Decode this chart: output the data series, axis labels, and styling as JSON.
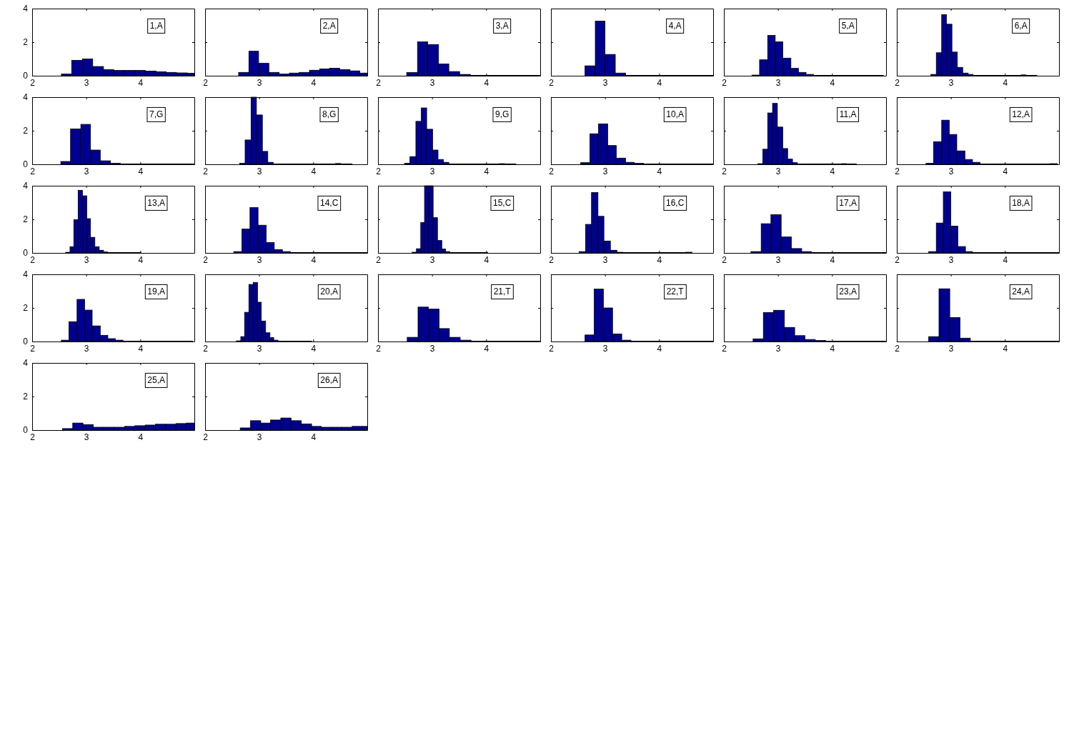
{
  "chart_data": [
    {
      "type": "histogram",
      "bins": [
        2.54,
        2.73,
        2.93,
        3.12,
        3.32,
        3.51,
        3.7,
        3.9,
        4.09,
        4.29,
        4.48,
        4.67,
        4.87,
        5.0
      ],
      "values": [
        0.1,
        0.92,
        1.0,
        0.55,
        0.37,
        0.32,
        0.32,
        0.32,
        0.28,
        0.24,
        0.2,
        0.17,
        0.15
      ],
      "color": "#00008f",
      "xlim": [
        2,
        5
      ],
      "ylim": [
        0,
        4
      ],
      "xticks": [
        2,
        3,
        4
      ],
      "yticks": [
        0,
        2,
        4
      ],
      "annotations": [
        "1,A"
      ]
    },
    {
      "type": "histogram",
      "bins": [
        2.62,
        2.81,
        2.99,
        3.18,
        3.37,
        3.56,
        3.74,
        3.93,
        4.12,
        4.3,
        4.49,
        4.68,
        4.86,
        5.0
      ],
      "values": [
        0.2,
        1.46,
        0.74,
        0.2,
        0.1,
        0.16,
        0.2,
        0.33,
        0.41,
        0.45,
        0.37,
        0.29,
        0.16
      ],
      "color": "#00008f",
      "xlim": [
        2,
        5
      ],
      "ylim": [
        0,
        4
      ],
      "xticks": [
        2,
        3,
        4
      ],
      "yticks": [
        0,
        2,
        4
      ],
      "annotations": [
        "2,A"
      ],
      "tick_labels": "x"
    },
    {
      "type": "histogram",
      "bins": [
        2.53,
        2.73,
        2.92,
        3.12,
        3.31,
        3.51,
        3.71,
        3.9,
        4.1,
        4.29,
        4.49,
        4.69,
        4.88,
        5.0
      ],
      "values": [
        0.19,
        2.02,
        1.86,
        0.7,
        0.25,
        0.08,
        0.02,
        0.02,
        0.02,
        0.02,
        0.02,
        0.02,
        0.02
      ],
      "color": "#00008f",
      "xlim": [
        2,
        5
      ],
      "ylim": [
        0,
        4
      ],
      "xticks": [
        2,
        3,
        4
      ],
      "yticks": [
        0,
        2,
        4
      ],
      "annotations": [
        "3,A"
      ],
      "tick_labels": "x"
    },
    {
      "type": "histogram",
      "bins": [
        2.63,
        2.82,
        3.0,
        3.19,
        3.38,
        3.57,
        3.75,
        3.94,
        4.13,
        4.31,
        4.5,
        4.69,
        4.87,
        5.0
      ],
      "values": [
        0.59,
        3.25,
        1.27,
        0.16,
        0.02,
        0.02,
        0.02,
        0.02,
        0.02,
        0.02,
        0.02,
        0.02,
        0.02
      ],
      "color": "#00008f",
      "xlim": [
        2,
        5
      ],
      "ylim": [
        0,
        4
      ],
      "xticks": [
        2,
        3,
        4
      ],
      "yticks": [
        0,
        2,
        4
      ],
      "annotations": [
        "4,A"
      ],
      "tick_labels": "x"
    },
    {
      "type": "histogram",
      "bins": [
        2.52,
        2.66,
        2.81,
        2.95,
        3.09,
        3.24,
        3.38,
        3.52,
        3.66,
        3.81,
        3.95,
        4.09,
        4.24,
        4.38,
        4.52,
        4.67,
        4.81,
        4.95
      ],
      "values": [
        0.04,
        0.95,
        2.4,
        2.02,
        1.05,
        0.44,
        0.2,
        0.08,
        0.02,
        0.02,
        0.02,
        0.02,
        0.02,
        0.02,
        0.02,
        0.02,
        0.02
      ],
      "color": "#00008f",
      "xlim": [
        2,
        5
      ],
      "ylim": [
        0,
        4
      ],
      "xticks": [
        2,
        3,
        4
      ],
      "yticks": [
        0,
        2,
        4
      ],
      "annotations": [
        "5,A"
      ],
      "tick_labels": "x"
    },
    {
      "type": "histogram",
      "bins": [
        2.63,
        2.73,
        2.83,
        2.92,
        3.02,
        3.12,
        3.22,
        3.32,
        3.41,
        3.51,
        3.61,
        3.71,
        3.81,
        3.9,
        4.0,
        4.1,
        4.2,
        4.3,
        4.39,
        4.49,
        4.59
      ],
      "values": [
        0.08,
        1.37,
        3.64,
        3.07,
        1.41,
        0.5,
        0.16,
        0.08,
        0.02,
        0.02,
        0.02,
        0.02,
        0.02,
        0.02,
        0.02,
        0.02,
        0.02,
        0.05,
        0.02,
        0.02
      ],
      "color": "#00008f",
      "xlim": [
        2,
        5
      ],
      "ylim": [
        0,
        4
      ],
      "xticks": [
        2,
        3,
        4
      ],
      "yticks": [
        0,
        2,
        4
      ],
      "annotations": [
        "6,A"
      ],
      "tick_labels": "x"
    },
    {
      "type": "histogram",
      "bins": [
        2.53,
        2.71,
        2.9,
        3.08,
        3.26,
        3.45,
        3.63,
        3.81,
        4.0,
        4.18,
        4.36,
        4.54,
        4.73,
        4.91,
        5.0
      ],
      "values": [
        0.17,
        2.11,
        2.38,
        0.85,
        0.21,
        0.06,
        0.02,
        0.02,
        0.02,
        0.02,
        0.02,
        0.02,
        0.02,
        0.02
      ],
      "color": "#00008f",
      "xlim": [
        2,
        5
      ],
      "ylim": [
        0,
        4
      ],
      "xticks": [
        2,
        3,
        4
      ],
      "yticks": [
        0,
        2,
        4
      ],
      "annotations": [
        "7,G"
      ]
    },
    {
      "type": "histogram",
      "bins": [
        2.64,
        2.74,
        2.85,
        2.95,
        3.06,
        3.16,
        3.26,
        3.37,
        3.47,
        3.58,
        3.68,
        3.78,
        3.89,
        3.99,
        4.1,
        4.2,
        4.3,
        4.41,
        4.51,
        4.62,
        4.72
      ],
      "values": [
        0.06,
        1.45,
        4,
        2.94,
        0.77,
        0.12,
        0.02,
        0.02,
        0.02,
        0.02,
        0.02,
        0.02,
        0.02,
        0.02,
        0.02,
        0.02,
        0.02,
        0.05,
        0.02,
        0.02
      ],
      "color": "#00008f",
      "xlim": [
        2,
        5
      ],
      "ylim": [
        0,
        4
      ],
      "xticks": [
        2,
        3,
        4
      ],
      "yticks": [
        0,
        2,
        4
      ],
      "annotations": [
        "8,G"
      ],
      "tick_labels": "x"
    },
    {
      "type": "histogram",
      "bins": [
        2.49,
        2.59,
        2.7,
        2.8,
        2.9,
        3.01,
        3.11,
        3.21,
        3.31,
        3.42,
        3.52,
        3.62,
        3.73,
        3.83,
        3.93,
        4.04,
        4.14,
        4.24,
        4.34,
        4.45,
        4.55
      ],
      "values": [
        0.06,
        0.46,
        2.56,
        3.36,
        2.09,
        0.85,
        0.29,
        0.12,
        0.02,
        0.02,
        0.02,
        0.02,
        0.02,
        0.02,
        0.02,
        0.02,
        0.02,
        0.04,
        0.02,
        0.02
      ],
      "color": "#00008f",
      "xlim": [
        2,
        5
      ],
      "ylim": [
        0,
        4
      ],
      "xticks": [
        2,
        3,
        4
      ],
      "yticks": [
        0,
        2,
        4
      ],
      "annotations": [
        "9,G"
      ],
      "tick_labels": "x"
    },
    {
      "type": "histogram",
      "bins": [
        2.55,
        2.72,
        2.88,
        3.05,
        3.21,
        3.38,
        3.54,
        3.71,
        3.87,
        4.04,
        4.2,
        4.37,
        4.53,
        4.7,
        4.86,
        5.0
      ],
      "values": [
        0.1,
        1.82,
        2.41,
        1.12,
        0.37,
        0.12,
        0.06,
        0.02,
        0.02,
        0.02,
        0.02,
        0.02,
        0.02,
        0.02,
        0.02
      ],
      "color": "#00008f",
      "xlim": [
        2,
        5
      ],
      "ylim": [
        0,
        4
      ],
      "xticks": [
        2,
        3,
        4
      ],
      "yticks": [
        0,
        2,
        4
      ],
      "annotations": [
        "10,A"
      ],
      "tick_labels": "x"
    },
    {
      "type": "histogram",
      "bins": [
        2.63,
        2.72,
        2.81,
        2.9,
        2.99,
        3.09,
        3.18,
        3.27,
        3.36,
        3.45,
        3.54,
        3.63,
        3.72,
        3.81,
        3.9,
        3.99,
        4.09,
        4.18,
        4.27,
        4.36,
        4.45
      ],
      "values": [
        0.04,
        0.9,
        3.06,
        3.63,
        2.22,
        0.94,
        0.31,
        0.1,
        0.02,
        0.02,
        0.02,
        0.02,
        0.02,
        0.02,
        0.02,
        0.02,
        0.02,
        0.04,
        0.02,
        0.02
      ],
      "color": "#00008f",
      "xlim": [
        2,
        5
      ],
      "ylim": [
        0,
        4
      ],
      "xticks": [
        2,
        3,
        4
      ],
      "yticks": [
        0,
        2,
        4
      ],
      "annotations": [
        "11,A"
      ],
      "tick_labels": "x"
    },
    {
      "type": "histogram",
      "bins": [
        2.54,
        2.68,
        2.83,
        2.97,
        3.11,
        3.26,
        3.4,
        3.54,
        3.68,
        3.83,
        3.97,
        4.11,
        4.26,
        4.4,
        4.54,
        4.69,
        4.83,
        4.97
      ],
      "values": [
        0.06,
        1.35,
        2.63,
        1.78,
        0.8,
        0.29,
        0.12,
        0.02,
        0.02,
        0.02,
        0.02,
        0.02,
        0.02,
        0.02,
        0.02,
        0.02,
        0.04
      ],
      "color": "#00008f",
      "xlim": [
        2,
        5
      ],
      "ylim": [
        0,
        4
      ],
      "xticks": [
        2,
        3,
        4
      ],
      "yticks": [
        0,
        2,
        4
      ],
      "annotations": [
        "12,A"
      ],
      "tick_labels": "x"
    },
    {
      "type": "histogram",
      "bins": [
        2.62,
        2.7,
        2.77,
        2.85,
        2.93,
        3.01,
        3.08,
        3.16,
        3.24,
        3.32,
        3.39,
        3.47,
        3.55,
        3.63,
        3.7,
        3.78,
        3.86,
        3.94,
        4.01
      ],
      "values": [
        0.04,
        0.37,
        1.98,
        3.73,
        3.4,
        2.04,
        0.93,
        0.37,
        0.16,
        0.06,
        0.02,
        0.02,
        0.02,
        0.02,
        0.02,
        0.02,
        0.02,
        0.02
      ],
      "color": "#00008f",
      "xlim": [
        2,
        5
      ],
      "ylim": [
        0,
        4
      ],
      "xticks": [
        2,
        3,
        4
      ],
      "yticks": [
        0,
        2,
        4
      ],
      "annotations": [
        "13,A"
      ]
    },
    {
      "type": "histogram",
      "bins": [
        2.53,
        2.68,
        2.83,
        2.98,
        3.13,
        3.28,
        3.43,
        3.58,
        3.73,
        3.88,
        4.03,
        4.18,
        4.33,
        4.48,
        4.63,
        4.78,
        4.93,
        5.0
      ],
      "values": [
        0.08,
        1.42,
        2.7,
        1.65,
        0.62,
        0.2,
        0.08,
        0.02,
        0.02,
        0.02,
        0.02,
        0.02,
        0.02,
        0.02,
        0.02,
        0.02,
        0.02
      ],
      "color": "#00008f",
      "xlim": [
        2,
        5
      ],
      "ylim": [
        0,
        4
      ],
      "xticks": [
        2,
        3,
        4
      ],
      "yticks": [
        0,
        2,
        4
      ],
      "annotations": [
        "14,C"
      ],
      "tick_labels": "x"
    },
    {
      "type": "histogram",
      "bins": [
        2.63,
        2.71,
        2.79,
        2.86,
        2.94,
        3.02,
        3.1,
        3.18,
        3.25,
        3.33,
        3.41,
        3.49,
        3.57,
        3.64,
        3.72,
        3.8,
        3.88,
        3.96,
        4.03
      ],
      "values": [
        0.04,
        0.25,
        1.81,
        4,
        4,
        2.1,
        0.74,
        0.23,
        0.08,
        0.02,
        0.02,
        0.02,
        0.02,
        0.02,
        0.02,
        0.02,
        0.02,
        0.02
      ],
      "color": "#00008f",
      "xlim": [
        2,
        5
      ],
      "ylim": [
        0,
        4
      ],
      "xticks": [
        2,
        3,
        4
      ],
      "yticks": [
        0,
        2,
        4
      ],
      "annotations": [
        "15,C"
      ],
      "tick_labels": "x"
    },
    {
      "type": "histogram",
      "bins": [
        2.52,
        2.64,
        2.75,
        2.87,
        2.98,
        3.1,
        3.22,
        3.33,
        3.45,
        3.56,
        3.68,
        3.8,
        3.91,
        4.03,
        4.14,
        4.26,
        4.38,
        4.49,
        4.61
      ],
      "values": [
        0.08,
        1.7,
        3.6,
        2.18,
        0.71,
        0.16,
        0.04,
        0.02,
        0.02,
        0.02,
        0.02,
        0.02,
        0.02,
        0.02,
        0.02,
        0.02,
        0.02,
        0.04
      ],
      "color": "#00008f",
      "xlim": [
        2,
        5
      ],
      "ylim": [
        0,
        4
      ],
      "xticks": [
        2,
        3,
        4
      ],
      "yticks": [
        0,
        2,
        4
      ],
      "annotations": [
        "16,C"
      ],
      "tick_labels": "x"
    },
    {
      "type": "histogram",
      "bins": [
        2.5,
        2.69,
        2.87,
        3.06,
        3.25,
        3.44,
        3.62,
        3.81,
        4.0,
        4.18,
        4.37,
        4.56,
        4.74,
        4.93,
        5.0
      ],
      "values": [
        0.08,
        1.74,
        2.28,
        0.95,
        0.26,
        0.08,
        0.02,
        0.02,
        0.02,
        0.02,
        0.02,
        0.02,
        0.02,
        0.02
      ],
      "color": "#00008f",
      "xlim": [
        2,
        5
      ],
      "ylim": [
        0,
        4
      ],
      "xticks": [
        2,
        3,
        4
      ],
      "yticks": [
        0,
        2,
        4
      ],
      "annotations": [
        "17,A"
      ],
      "tick_labels": "x"
    },
    {
      "type": "histogram",
      "bins": [
        2.59,
        2.73,
        2.86,
        3.0,
        3.13,
        3.27,
        3.4,
        3.54,
        3.67,
        3.81,
        3.94,
        4.08,
        4.21,
        4.35,
        4.48,
        4.62,
        4.75,
        4.89,
        5.0
      ],
      "values": [
        0.08,
        1.78,
        3.64,
        1.6,
        0.38,
        0.08,
        0.02,
        0.02,
        0.02,
        0.02,
        0.02,
        0.02,
        0.02,
        0.02,
        0.02,
        0.02,
        0.02,
        0.02
      ],
      "color": "#00008f",
      "xlim": [
        2,
        5
      ],
      "ylim": [
        0,
        4
      ],
      "xticks": [
        2,
        3,
        4
      ],
      "yticks": [
        0,
        2,
        4
      ],
      "annotations": [
        "18,A"
      ],
      "tick_labels": "x"
    },
    {
      "type": "histogram",
      "bins": [
        2.54,
        2.68,
        2.83,
        2.97,
        3.11,
        3.26,
        3.4,
        3.54,
        3.68,
        3.83,
        3.97,
        4.11,
        4.26,
        4.4,
        4.54,
        4.69,
        4.83,
        4.97
      ],
      "values": [
        0.08,
        1.18,
        2.51,
        1.87,
        0.93,
        0.37,
        0.17,
        0.08,
        0.02,
        0.02,
        0.02,
        0.02,
        0.02,
        0.02,
        0.02,
        0.02,
        0.02
      ],
      "color": "#00008f",
      "xlim": [
        2,
        5
      ],
      "ylim": [
        0,
        4
      ],
      "xticks": [
        2,
        3,
        4
      ],
      "yticks": [
        0,
        2,
        4
      ],
      "annotations": [
        "19,A"
      ]
    },
    {
      "type": "histogram",
      "bins": [
        2.58,
        2.66,
        2.73,
        2.81,
        2.89,
        2.97,
        3.04,
        3.12,
        3.2,
        3.27,
        3.35,
        3.43,
        3.5,
        3.58,
        3.66,
        3.74,
        3.81,
        3.89,
        3.97
      ],
      "values": [
        0.04,
        0.29,
        1.74,
        3.4,
        3.52,
        2.34,
        1.22,
        0.52,
        0.23,
        0.08,
        0.02,
        0.02,
        0.02,
        0.02,
        0.02,
        0.02,
        0.02,
        0.02
      ],
      "color": "#00008f",
      "xlim": [
        2,
        5
      ],
      "ylim": [
        0,
        4
      ],
      "xticks": [
        2,
        3,
        4
      ],
      "yticks": [
        0,
        2,
        4
      ],
      "annotations": [
        "20,A"
      ],
      "tick_labels": "x"
    },
    {
      "type": "histogram",
      "bins": [
        2.54,
        2.74,
        2.93,
        3.13,
        3.32,
        3.52,
        3.72,
        3.91,
        4.11,
        4.3,
        4.5,
        4.7,
        4.89,
        5.0
      ],
      "values": [
        0.25,
        2.05,
        1.93,
        0.77,
        0.25,
        0.08,
        0.02,
        0.02,
        0.02,
        0.02,
        0.02,
        0.02,
        0.02
      ],
      "color": "#00008f",
      "xlim": [
        2,
        5
      ],
      "ylim": [
        0,
        4
      ],
      "xticks": [
        2,
        3,
        4
      ],
      "yticks": [
        0,
        2,
        4
      ],
      "annotations": [
        "21,T"
      ],
      "tick_labels": "x"
    },
    {
      "type": "histogram",
      "bins": [
        2.63,
        2.8,
        2.97,
        3.14,
        3.31,
        3.48,
        3.64,
        3.81,
        3.98,
        4.15,
        4.32,
        4.49,
        4.66,
        4.83,
        5.0
      ],
      "values": [
        0.39,
        3.12,
        2.0,
        0.45,
        0.08,
        0.02,
        0.02,
        0.02,
        0.02,
        0.02,
        0.02,
        0.02,
        0.02,
        0.02
      ],
      "color": "#00008f",
      "xlim": [
        2,
        5
      ],
      "ylim": [
        0,
        4
      ],
      "xticks": [
        2,
        3,
        4
      ],
      "yticks": [
        0,
        2,
        4
      ],
      "annotations": [
        "22,T"
      ],
      "tick_labels": "x"
    },
    {
      "type": "histogram",
      "bins": [
        2.54,
        2.73,
        2.92,
        3.12,
        3.31,
        3.5,
        3.69,
        3.88,
        4.08,
        4.27,
        4.46,
        4.65,
        4.84,
        5.0
      ],
      "values": [
        0.16,
        1.73,
        1.86,
        0.84,
        0.35,
        0.12,
        0.06,
        0.02,
        0.02,
        0.02,
        0.02,
        0.02,
        0.02
      ],
      "color": "#00008f",
      "xlim": [
        2,
        5
      ],
      "ylim": [
        0,
        4
      ],
      "xticks": [
        2,
        3,
        4
      ],
      "yticks": [
        0,
        2,
        4
      ],
      "annotations": [
        "23,A"
      ],
      "tick_labels": "x"
    },
    {
      "type": "histogram",
      "bins": [
        2.59,
        2.78,
        2.98,
        3.17,
        3.36,
        3.56,
        3.75,
        3.94,
        4.13,
        4.33,
        4.52,
        4.71,
        4.91,
        5.0
      ],
      "values": [
        0.29,
        3.14,
        1.43,
        0.2,
        0.02,
        0.02,
        0.02,
        0.02,
        0.02,
        0.02,
        0.02,
        0.02,
        0.02
      ],
      "color": "#00008f",
      "xlim": [
        2,
        5
      ],
      "ylim": [
        0,
        4
      ],
      "xticks": [
        2,
        3,
        4
      ],
      "yticks": [
        0,
        2,
        4
      ],
      "annotations": [
        "24,A"
      ],
      "tick_labels": "x"
    },
    {
      "type": "histogram",
      "bins": [
        2.56,
        2.75,
        2.94,
        3.13,
        3.32,
        3.52,
        3.71,
        3.9,
        4.09,
        4.28,
        4.47,
        4.66,
        4.85,
        5.0
      ],
      "values": [
        0.09,
        0.42,
        0.33,
        0.17,
        0.17,
        0.17,
        0.22,
        0.26,
        0.3,
        0.35,
        0.35,
        0.39,
        0.42
      ],
      "color": "#00008f",
      "xlim": [
        2,
        5
      ],
      "ylim": [
        0,
        4
      ],
      "xticks": [
        2,
        3,
        4
      ],
      "yticks": [
        0,
        2,
        4
      ],
      "annotations": [
        "25,A"
      ]
    },
    {
      "type": "histogram",
      "bins": [
        2.65,
        2.84,
        3.03,
        3.21,
        3.4,
        3.59,
        3.78,
        3.97,
        4.15,
        4.34,
        4.53,
        4.72,
        4.91,
        5.0
      ],
      "values": [
        0.13,
        0.56,
        0.42,
        0.6,
        0.72,
        0.56,
        0.37,
        0.22,
        0.17,
        0.17,
        0.17,
        0.22,
        0.22
      ],
      "color": "#00008f",
      "xlim": [
        2,
        5
      ],
      "ylim": [
        0,
        4
      ],
      "xticks": [
        2,
        3,
        4
      ],
      "yticks": [
        0,
        2,
        4
      ],
      "annotations": [
        "26,A"
      ],
      "tick_labels": "x"
    }
  ]
}
